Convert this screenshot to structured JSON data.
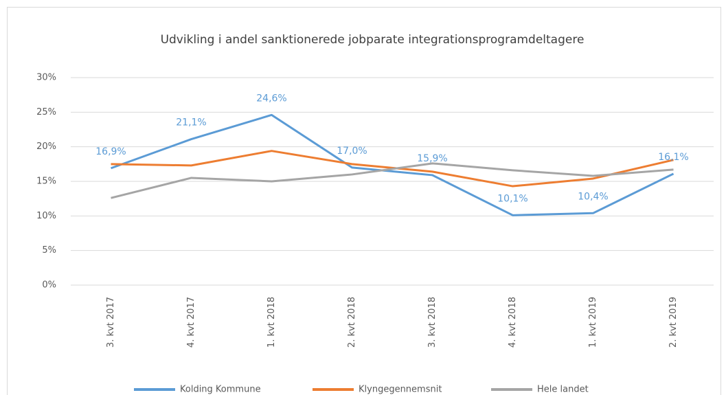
{
  "chart_data": {
    "type": "line",
    "title": "Udvikling i andel sanktionerede jobparate integrationsprogramdeltagere",
    "categories": [
      "3. kvt 2017",
      "4. kvt 2017",
      "1. kvt 2018",
      "2. kvt 2018",
      "3. kvt 2018",
      "4. kvt 2018",
      "1. kvt 2019",
      "2. kvt 2019"
    ],
    "series": [
      {
        "name": "Kolding Kommune",
        "color": "#5b9bd5",
        "values": [
          16.9,
          21.1,
          24.6,
          17.0,
          15.9,
          10.1,
          10.4,
          16.1
        ],
        "value_labels": [
          "16,9%",
          "21,1%",
          "24,6%",
          "17,0%",
          "15,9%",
          "10,1%",
          "10,4%",
          "16,1%"
        ]
      },
      {
        "name": "Klyngegennemsnit",
        "color": "#ed7d31",
        "values": [
          17.5,
          17.3,
          19.4,
          17.5,
          16.4,
          14.3,
          15.4,
          18.1
        ]
      },
      {
        "name": "Hele landet",
        "color": "#a5a5a5",
        "values": [
          12.6,
          15.5,
          15.0,
          16.0,
          17.6,
          16.6,
          15.8,
          16.7
        ]
      }
    ],
    "ylim": [
      0,
      30
    ],
    "yticks": [
      {
        "value": 0,
        "label": "0%"
      },
      {
        "value": 5,
        "label": "5%"
      },
      {
        "value": 10,
        "label": "10%"
      },
      {
        "value": 15,
        "label": "15%"
      },
      {
        "value": 20,
        "label": "20%"
      },
      {
        "value": 25,
        "label": "25%"
      },
      {
        "value": 30,
        "label": "30%"
      }
    ],
    "grid": true,
    "legend": "bottom"
  }
}
